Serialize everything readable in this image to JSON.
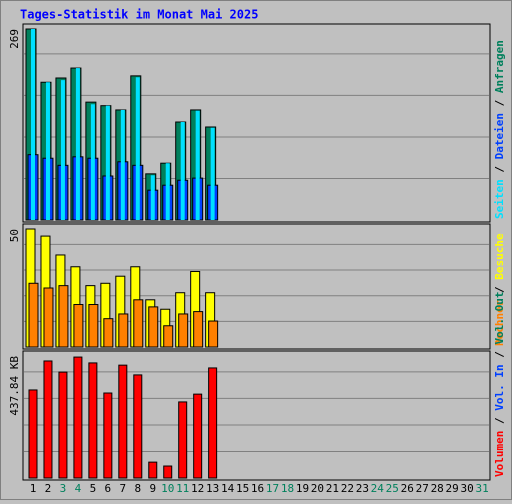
{
  "chart_data": [
    {
      "type": "bar",
      "title": "Tages-Statistik im Monat Mai 2025",
      "categories": [
        "1",
        "2",
        "3",
        "4",
        "5",
        "6",
        "7",
        "8",
        "9",
        "10",
        "11",
        "12",
        "13",
        "14",
        "15",
        "16",
        "17",
        "18",
        "19",
        "20",
        "21",
        "22",
        "23",
        "24",
        "25",
        "26",
        "27",
        "28",
        "29",
        "30",
        "31"
      ],
      "category_colors": [
        "#000000",
        "#000000",
        "#00805c",
        "#00805c",
        "#000000",
        "#000000",
        "#000000",
        "#000000",
        "#000000",
        "#00805c",
        "#00805c",
        "#000000",
        "#000000",
        "#000000",
        "#000000",
        "#000000",
        "#00805c",
        "#00805c",
        "#000000",
        "#000000",
        "#000000",
        "#000000",
        "#000000",
        "#00805c",
        "#00805c",
        "#000000",
        "#000000",
        "#000000",
        "#000000",
        "#000000",
        "#00805c"
      ],
      "ylim": [
        0,
        269
      ],
      "yticks": [
        269
      ],
      "grid": true,
      "series": [
        {
          "name": "Seiten",
          "color": "#00e0ff",
          "values": [
            269,
            194,
            197,
            214,
            163,
            161,
            155,
            201,
            63,
            80,
            138,
            154,
            130,
            null,
            null,
            null,
            null,
            null,
            null,
            null,
            null,
            null,
            null,
            null,
            null,
            null,
            null,
            null,
            null,
            null,
            null
          ]
        },
        {
          "name": "Dateien",
          "color": "#0040ff",
          "values": [
            92,
            87,
            77,
            89,
            87,
            62,
            82,
            77,
            42,
            49,
            56,
            59,
            49,
            null,
            null,
            null,
            null,
            null,
            null,
            null,
            null,
            null,
            null,
            null,
            null,
            null,
            null,
            null,
            null,
            null,
            null
          ]
        },
        {
          "name": "Anfragen",
          "color": "#00805c",
          "values": [
            269,
            194,
            200,
            214,
            166,
            161,
            155,
            203,
            65,
            80,
            138,
            155,
            131,
            null,
            null,
            null,
            null,
            null,
            null,
            null,
            null,
            null,
            null,
            null,
            null,
            null,
            null,
            null,
            null,
            null,
            null
          ]
        }
      ]
    },
    {
      "type": "bar",
      "ylim": [
        0,
        50
      ],
      "yticks": [
        50
      ],
      "grid": true,
      "series": [
        {
          "name": "Rechner",
          "color": "#ff8000",
          "values": [
            27,
            25,
            26,
            18,
            18,
            12,
            14,
            20,
            17,
            9,
            14,
            15,
            11,
            null,
            null,
            null,
            null,
            null,
            null,
            null,
            null,
            null,
            null,
            null,
            null,
            null,
            null,
            null,
            null,
            null,
            null
          ]
        },
        {
          "name": "Besuche",
          "color": "#ffff00",
          "values": [
            50,
            47,
            39,
            34,
            26,
            27,
            30,
            34,
            20,
            16,
            23,
            32,
            23,
            null,
            null,
            null,
            null,
            null,
            null,
            null,
            null,
            null,
            null,
            null,
            null,
            null,
            null,
            null,
            null,
            null,
            null
          ]
        }
      ]
    },
    {
      "type": "bar",
      "ylim": [
        0,
        437.84
      ],
      "yticks": [
        {
          "value": 437.84,
          "label": "437.84 KB"
        }
      ],
      "grid": true,
      "series": [
        {
          "name": "Volumen",
          "color": "#ff0000",
          "values": [
            316,
            420,
            380,
            434,
            413,
            305,
            405,
            370,
            57,
            43,
            273,
            301,
            395,
            null,
            null,
            null,
            null,
            null,
            null,
            null,
            null,
            null,
            null,
            null,
            null,
            null,
            null,
            null,
            null,
            null,
            null
          ]
        }
      ],
      "legend_only": [
        {
          "name": "Vol. In",
          "color": "#0040ff"
        },
        {
          "name": "Vol. Out",
          "color": "#00805c"
        }
      ]
    }
  ]
}
